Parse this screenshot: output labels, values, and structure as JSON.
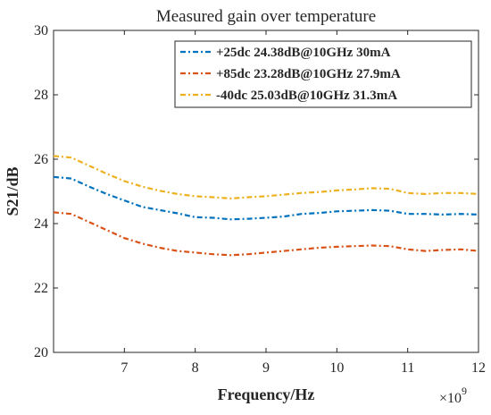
{
  "chart_data": {
    "type": "line",
    "title": "Measured gain over temperature",
    "xlabel": "Frequency/Hz",
    "ylabel": "S21/dB",
    "x_exponent_label": "×10",
    "x_exponent_power": "9",
    "xlim": [
      6000000000,
      12000000000
    ],
    "ylim": [
      20,
      30
    ],
    "xticks": [
      7000000000,
      8000000000,
      9000000000,
      10000000000,
      11000000000,
      12000000000
    ],
    "xtick_labels": [
      "7",
      "8",
      "9",
      "10",
      "11",
      "12"
    ],
    "yticks": [
      20,
      22,
      24,
      26,
      28,
      30
    ],
    "ytick_labels": [
      "20",
      "22",
      "24",
      "26",
      "28",
      "30"
    ],
    "grid": false,
    "legend_position": "top-right",
    "x": [
      6000000000,
      6250000000,
      6500000000,
      6750000000,
      7000000000,
      7250000000,
      7500000000,
      7750000000,
      8000000000,
      8250000000,
      8500000000,
      8750000000,
      9000000000,
      9250000000,
      9500000000,
      9750000000,
      10000000000,
      10250000000,
      10500000000,
      10750000000,
      11000000000,
      11250000000,
      11500000000,
      11750000000,
      12000000000
    ],
    "series": [
      {
        "name": "+25dc 24.38dB@10GHz 30mA",
        "color": "#0072BD",
        "values": [
          25.45,
          25.4,
          25.15,
          24.92,
          24.72,
          24.52,
          24.42,
          24.32,
          24.2,
          24.18,
          24.13,
          24.15,
          24.18,
          24.22,
          24.3,
          24.33,
          24.38,
          24.4,
          24.42,
          24.4,
          24.3,
          24.3,
          24.28,
          24.3,
          24.28
        ]
      },
      {
        "name": "+85dc 23.28dB@10GHz 27.9mA",
        "color": "#D95319",
        "values": [
          24.35,
          24.3,
          24.05,
          23.8,
          23.55,
          23.38,
          23.25,
          23.15,
          23.1,
          23.05,
          23.02,
          23.05,
          23.1,
          23.15,
          23.2,
          23.25,
          23.28,
          23.3,
          23.32,
          23.3,
          23.2,
          23.15,
          23.18,
          23.2,
          23.15
        ]
      },
      {
        "name": "-40dc 25.03dB@10GHz 31.3mA",
        "color": "#EDB120",
        "values": [
          26.1,
          26.05,
          25.8,
          25.55,
          25.32,
          25.15,
          25.02,
          24.92,
          24.85,
          24.82,
          24.78,
          24.82,
          24.85,
          24.9,
          24.95,
          24.98,
          25.03,
          25.06,
          25.1,
          25.08,
          24.95,
          24.92,
          24.95,
          24.95,
          24.92
        ]
      }
    ]
  }
}
